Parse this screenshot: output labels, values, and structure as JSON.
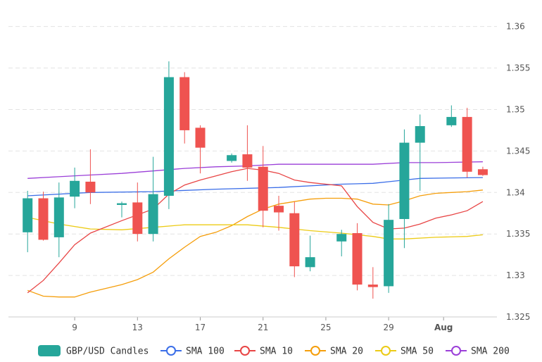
{
  "chart_data": {
    "type": "candlestick",
    "x_ticks": [
      "9",
      "13",
      "17",
      "21",
      "25",
      "29",
      "Aug"
    ],
    "y_ticks": [
      "1.36",
      "1.355",
      "1.35",
      "1.345",
      "1.34",
      "1.335",
      "1.33",
      "1.325"
    ],
    "ylim": [
      1.325,
      1.3615
    ],
    "grid": true,
    "legend_position": "bottom",
    "colors": {
      "up": "#26a69a",
      "down": "#ef5350",
      "sma100": "#3b6ee8",
      "sma10": "#e84545",
      "sma20": "#f59e0b",
      "sma50": "#eccb16",
      "sma200": "#9b3fd8"
    },
    "candles": [
      {
        "x": 6,
        "o": 1.3352,
        "h": 1.3402,
        "l": 1.3328,
        "c": 1.3393
      },
      {
        "x": 7,
        "o": 1.3393,
        "h": 1.3401,
        "l": 1.3342,
        "c": 1.3343
      },
      {
        "x": 8,
        "o": 1.3346,
        "h": 1.3412,
        "l": 1.3322,
        "c": 1.3394
      },
      {
        "x": 9,
        "o": 1.3395,
        "h": 1.343,
        "l": 1.3381,
        "c": 1.3414
      },
      {
        "x": 10,
        "o": 1.3413,
        "h": 1.3452,
        "l": 1.3386,
        "c": 1.34
      },
      {
        "x": 12,
        "o": 1.3385,
        "h": 1.3389,
        "l": 1.337,
        "c": 1.3387
      },
      {
        "x": 13,
        "o": 1.3388,
        "h": 1.3412,
        "l": 1.3341,
        "c": 1.335
      },
      {
        "x": 14,
        "o": 1.335,
        "h": 1.3443,
        "l": 1.3341,
        "c": 1.3398
      },
      {
        "x": 15,
        "o": 1.3396,
        "h": 1.3558,
        "l": 1.338,
        "c": 1.3539
      },
      {
        "x": 16,
        "o": 1.3539,
        "h": 1.3545,
        "l": 1.3459,
        "c": 1.3475
      },
      {
        "x": 17,
        "o": 1.3478,
        "h": 1.3481,
        "l": 1.3423,
        "c": 1.3454
      },
      {
        "x": 19,
        "o": 1.3438,
        "h": 1.3447,
        "l": 1.3436,
        "c": 1.3445
      },
      {
        "x": 20,
        "o": 1.3446,
        "h": 1.3481,
        "l": 1.3414,
        "c": 1.343
      },
      {
        "x": 21,
        "o": 1.3431,
        "h": 1.3456,
        "l": 1.3358,
        "c": 1.3378
      },
      {
        "x": 22,
        "o": 1.3384,
        "h": 1.3396,
        "l": 1.3354,
        "c": 1.3376
      },
      {
        "x": 23,
        "o": 1.3375,
        "h": 1.3389,
        "l": 1.3298,
        "c": 1.3311
      },
      {
        "x": 24,
        "o": 1.331,
        "h": 1.3348,
        "l": 1.3305,
        "c": 1.3322
      },
      {
        "x": 26,
        "o": 1.3341,
        "h": 1.3355,
        "l": 1.3323,
        "c": 1.335
      },
      {
        "x": 27,
        "o": 1.3351,
        "h": 1.3363,
        "l": 1.3282,
        "c": 1.3289
      },
      {
        "x": 28,
        "o": 1.3289,
        "h": 1.331,
        "l": 1.3272,
        "c": 1.3286
      },
      {
        "x": 29,
        "o": 1.3287,
        "h": 1.3386,
        "l": 1.3279,
        "c": 1.3367
      },
      {
        "x": 30,
        "o": 1.3368,
        "h": 1.3476,
        "l": 1.3333,
        "c": 1.346
      },
      {
        "x": 31,
        "o": 1.346,
        "h": 1.3494,
        "l": 1.3402,
        "c": 1.348
      },
      {
        "x": 33,
        "o": 1.3481,
        "h": 1.3505,
        "l": 1.3479,
        "c": 1.3491
      },
      {
        "x": 34,
        "o": 1.3491,
        "h": 1.3502,
        "l": 1.3418,
        "c": 1.3425
      },
      {
        "x": 35,
        "o": 1.3428,
        "h": 1.3431,
        "l": 1.342,
        "c": 1.3421
      }
    ],
    "series": [
      {
        "name": "SMA 100",
        "key": "sma100",
        "x": [
          6,
          10,
          14,
          18,
          22,
          26,
          28,
          29,
          31,
          35
        ],
        "values": [
          1.3396,
          1.34,
          1.3401,
          1.3404,
          1.3406,
          1.341,
          1.3411,
          1.3413,
          1.3417,
          1.3418
        ]
      },
      {
        "name": "SMA 10",
        "key": "sma10",
        "x": [
          6,
          7,
          8,
          9,
          10,
          12,
          14,
          15,
          16,
          17,
          18,
          19,
          20,
          21,
          22,
          23,
          24,
          25,
          26,
          27,
          28,
          29,
          30,
          31,
          32,
          33,
          34,
          35
        ],
        "values": [
          1.3279,
          1.3294,
          1.3315,
          1.3337,
          1.3351,
          1.3366,
          1.338,
          1.3398,
          1.3409,
          1.3415,
          1.342,
          1.3425,
          1.3429,
          1.3427,
          1.3423,
          1.3415,
          1.3412,
          1.341,
          1.3408,
          1.3383,
          1.3364,
          1.3356,
          1.3357,
          1.3362,
          1.3369,
          1.3373,
          1.3378,
          1.3389
        ]
      },
      {
        "name": "SMA 20",
        "key": "sma20",
        "x": [
          6,
          7,
          8,
          9,
          10,
          12,
          13,
          14,
          15,
          16,
          17,
          18,
          19,
          20,
          21,
          22,
          23,
          24,
          25,
          26,
          27,
          28,
          29,
          30,
          31,
          32,
          33,
          34,
          35
        ],
        "values": [
          1.3282,
          1.3275,
          1.3274,
          1.3274,
          1.328,
          1.3289,
          1.3295,
          1.3304,
          1.332,
          1.3334,
          1.3347,
          1.3352,
          1.336,
          1.3371,
          1.338,
          1.3386,
          1.3389,
          1.3392,
          1.3393,
          1.3393,
          1.3392,
          1.3386,
          1.3385,
          1.339,
          1.3396,
          1.3399,
          1.34,
          1.3401,
          1.3403
        ]
      },
      {
        "name": "SMA 50",
        "key": "sma50",
        "x": [
          6,
          8,
          10,
          12,
          14,
          16,
          18,
          20,
          22,
          24,
          26,
          28,
          29,
          30,
          32,
          34,
          35
        ],
        "values": [
          1.337,
          1.3362,
          1.3356,
          1.3355,
          1.3358,
          1.3361,
          1.3361,
          1.3361,
          1.3358,
          1.3354,
          1.3351,
          1.3347,
          1.3344,
          1.3344,
          1.3346,
          1.3347,
          1.3349
        ]
      },
      {
        "name": "SMA 200",
        "key": "sma200",
        "x": [
          6,
          8,
          10,
          12,
          14,
          16,
          18,
          20,
          22,
          24,
          26,
          28,
          30,
          32,
          35
        ],
        "values": [
          1.3417,
          1.3419,
          1.3421,
          1.3423,
          1.3426,
          1.3429,
          1.3431,
          1.3432,
          1.3434,
          1.3434,
          1.3434,
          1.3434,
          1.3436,
          1.3436,
          1.3437
        ]
      }
    ],
    "legend": [
      {
        "label": "GBP/USD Candles",
        "key": "candles",
        "marker": "rect"
      },
      {
        "label": "SMA 100",
        "key": "sma100",
        "marker": "circle"
      },
      {
        "label": "SMA 10",
        "key": "sma10",
        "marker": "circle"
      },
      {
        "label": "SMA 20",
        "key": "sma20",
        "marker": "circle"
      },
      {
        "label": "SMA 50",
        "key": "sma50",
        "marker": "circle"
      },
      {
        "label": "SMA 200",
        "key": "sma200",
        "marker": "circle"
      }
    ]
  }
}
